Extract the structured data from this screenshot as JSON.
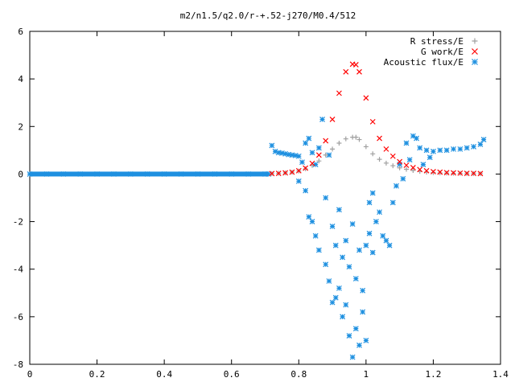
{
  "chart_data": {
    "type": "scatter",
    "title": "m2/n1.5/q2.0/r-+.52-j270/M0.4/512",
    "xlabel": "",
    "ylabel": "",
    "xlim": [
      0,
      1.4
    ],
    "ylim": [
      -8,
      6
    ],
    "xticks": [
      "0",
      "0.2",
      "0.4",
      "0.6",
      "0.8",
      "1",
      "1.2",
      "1.4"
    ],
    "yticks": [
      "6",
      "4",
      "2",
      "0",
      "-2",
      "-4",
      "-6",
      "-8"
    ],
    "grid": false,
    "legend_position": "top-right",
    "series": [
      {
        "name": "R stress/E",
        "marker": "plus",
        "color": "#a0a0a0",
        "x": [
          0.72,
          0.74,
          0.76,
          0.78,
          0.8,
          0.82,
          0.84,
          0.86,
          0.88,
          0.9,
          0.92,
          0.94,
          0.96,
          0.97,
          0.98,
          1.0,
          1.02,
          1.04,
          1.06,
          1.08,
          1.1,
          1.12,
          1.14,
          1.16,
          1.18,
          1.2,
          1.22,
          1.24,
          1.26,
          1.28,
          1.3,
          1.32,
          1.34
        ],
        "y": [
          0.02,
          0.03,
          0.05,
          0.08,
          0.13,
          0.22,
          0.36,
          0.55,
          0.8,
          1.05,
          1.3,
          1.48,
          1.55,
          1.55,
          1.45,
          1.15,
          0.85,
          0.62,
          0.46,
          0.35,
          0.26,
          0.2,
          0.15,
          0.11,
          0.08,
          0.06,
          0.05,
          0.04,
          0.03,
          0.03,
          0.02,
          0.02,
          0.02
        ]
      },
      {
        "name": "G work/E",
        "marker": "cross",
        "color": "#ff0000",
        "x": [
          0.72,
          0.74,
          0.76,
          0.78,
          0.8,
          0.82,
          0.84,
          0.86,
          0.88,
          0.9,
          0.92,
          0.94,
          0.96,
          0.97,
          0.98,
          1.0,
          1.02,
          1.04,
          1.06,
          1.08,
          1.1,
          1.12,
          1.14,
          1.16,
          1.18,
          1.2,
          1.22,
          1.24,
          1.26,
          1.28,
          1.3,
          1.32,
          1.34
        ],
        "y": [
          0.02,
          0.03,
          0.05,
          0.08,
          0.14,
          0.25,
          0.45,
          0.8,
          1.4,
          2.3,
          3.4,
          4.3,
          4.62,
          4.6,
          4.3,
          3.2,
          2.2,
          1.5,
          1.05,
          0.75,
          0.52,
          0.37,
          0.27,
          0.19,
          0.14,
          0.1,
          0.08,
          0.06,
          0.05,
          0.04,
          0.03,
          0.03,
          0.02
        ]
      },
      {
        "name": "Acoustic flux/E",
        "marker": "star",
        "color": "#1e90e0",
        "x": [
          0.0,
          0.05,
          0.1,
          0.15,
          0.2,
          0.25,
          0.3,
          0.35,
          0.4,
          0.45,
          0.5,
          0.55,
          0.6,
          0.65,
          0.7,
          0.71,
          0.72,
          0.73,
          0.74,
          0.75,
          0.76,
          0.77,
          0.78,
          0.79,
          0.8,
          0.8,
          0.81,
          0.82,
          0.82,
          0.83,
          0.83,
          0.84,
          0.84,
          0.85,
          0.85,
          0.86,
          0.86,
          0.87,
          0.88,
          0.88,
          0.89,
          0.89,
          0.9,
          0.9,
          0.91,
          0.91,
          0.92,
          0.92,
          0.93,
          0.93,
          0.94,
          0.94,
          0.95,
          0.95,
          0.96,
          0.96,
          0.97,
          0.97,
          0.98,
          0.98,
          0.99,
          0.99,
          1.0,
          1.0,
          1.01,
          1.01,
          1.02,
          1.02,
          1.03,
          1.04,
          1.05,
          1.06,
          1.07,
          1.08,
          1.09,
          1.1,
          1.11,
          1.12,
          1.13,
          1.14,
          1.15,
          1.16,
          1.17,
          1.18,
          1.19,
          1.2,
          1.22,
          1.24,
          1.26,
          1.28,
          1.3,
          1.32,
          1.34,
          1.35
        ],
        "y": [
          0,
          0,
          0,
          0,
          0,
          0,
          0,
          0,
          0,
          0,
          0,
          0,
          0,
          0,
          0,
          0,
          1.2,
          0.95,
          0.9,
          0.88,
          0.85,
          0.82,
          0.8,
          0.78,
          0.75,
          -0.3,
          0.5,
          1.3,
          -0.7,
          1.5,
          -1.8,
          0.9,
          -2.0,
          0.4,
          -2.6,
          1.1,
          -3.2,
          2.3,
          -1.0,
          -3.8,
          0.8,
          -4.5,
          -2.2,
          -5.4,
          -3.0,
          -5.2,
          -1.5,
          -4.8,
          -3.5,
          -6.0,
          -2.8,
          -5.5,
          -3.9,
          -6.8,
          -2.1,
          -7.7,
          -4.4,
          -6.5,
          -3.2,
          -7.2,
          -4.9,
          -5.8,
          -3.0,
          -7.0,
          -1.2,
          -2.5,
          -0.8,
          -3.3,
          -2.0,
          -1.6,
          -2.6,
          -2.8,
          -3.0,
          -1.2,
          -0.5,
          0.4,
          -0.2,
          1.3,
          0.6,
          1.6,
          1.5,
          1.1,
          0.4,
          1.0,
          0.7,
          0.95,
          1.0,
          1.0,
          1.05,
          1.05,
          1.1,
          1.15,
          1.25,
          1.45
        ]
      }
    ]
  }
}
